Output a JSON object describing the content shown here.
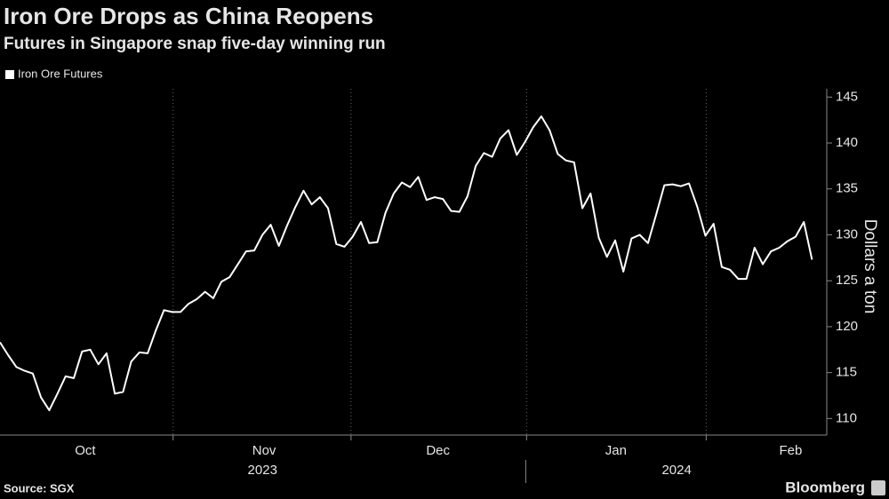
{
  "chart_data": {
    "type": "line",
    "title": "Iron Ore Drops as China Reopens",
    "subtitle": "Futures in Singapore snap five-day winning run",
    "y_axis_label": "Dollars a ton",
    "source": "Source: SGX",
    "brand": "Bloomberg",
    "legend_position": "top-left",
    "series": [
      {
        "name": "Iron Ore Futures",
        "color": "#ffffff",
        "values": [
          118.3,
          116.9,
          115.6,
          115.2,
          114.9,
          112.3,
          110.9,
          112.7,
          114.6,
          114.4,
          117.3,
          117.5,
          115.9,
          117.1,
          112.7,
          112.9,
          116.2,
          117.2,
          117.1,
          119.6,
          121.8,
          121.6,
          121.6,
          122.5,
          123.0,
          123.8,
          123.1,
          124.9,
          125.4,
          126.8,
          128.2,
          128.3,
          130.0,
          131.1,
          128.8,
          131.0,
          133.0,
          134.8,
          133.3,
          134.1,
          132.9,
          129.0,
          128.7,
          129.8,
          131.4,
          129.1,
          129.2,
          132.4,
          134.5,
          135.7,
          135.2,
          136.3,
          133.8,
          134.1,
          133.9,
          132.6,
          132.5,
          134.2,
          137.5,
          138.9,
          138.5,
          140.5,
          141.4,
          138.7,
          140.1,
          141.7,
          142.9,
          141.4,
          138.8,
          138.1,
          137.9,
          132.9,
          134.5,
          129.7,
          127.6,
          129.4,
          126.0,
          129.6,
          130.0,
          129.1,
          132.2,
          135.4,
          135.5,
          135.3,
          135.6,
          133.1,
          129.9,
          131.2,
          126.5,
          126.2,
          125.2,
          125.2,
          128.6,
          126.8,
          128.2,
          128.6,
          129.3,
          129.8,
          131.4,
          127.3
        ]
      }
    ],
    "xlim": [
      0,
      100.8
    ],
    "xticks": [
      {
        "value": 10.4,
        "label": "Oct"
      },
      {
        "value": 32.2,
        "label": "Nov"
      },
      {
        "value": 53.4,
        "label": "Dec"
      },
      {
        "value": 75.1,
        "label": "Jan"
      },
      {
        "value": 96.4,
        "label": "Feb"
      }
    ],
    "xgrid": [
      21.1,
      42.8,
      64.2,
      86.1
    ],
    "years": [
      {
        "value": 32,
        "label": "2023"
      },
      {
        "value": 82.5,
        "label": "2024"
      }
    ],
    "year_separators": [
      64.1
    ],
    "ylim": [
      108.2,
      145.9
    ],
    "yticks": [
      110,
      115,
      120,
      125,
      130,
      135,
      140,
      145
    ],
    "y_axis_side": "right"
  }
}
